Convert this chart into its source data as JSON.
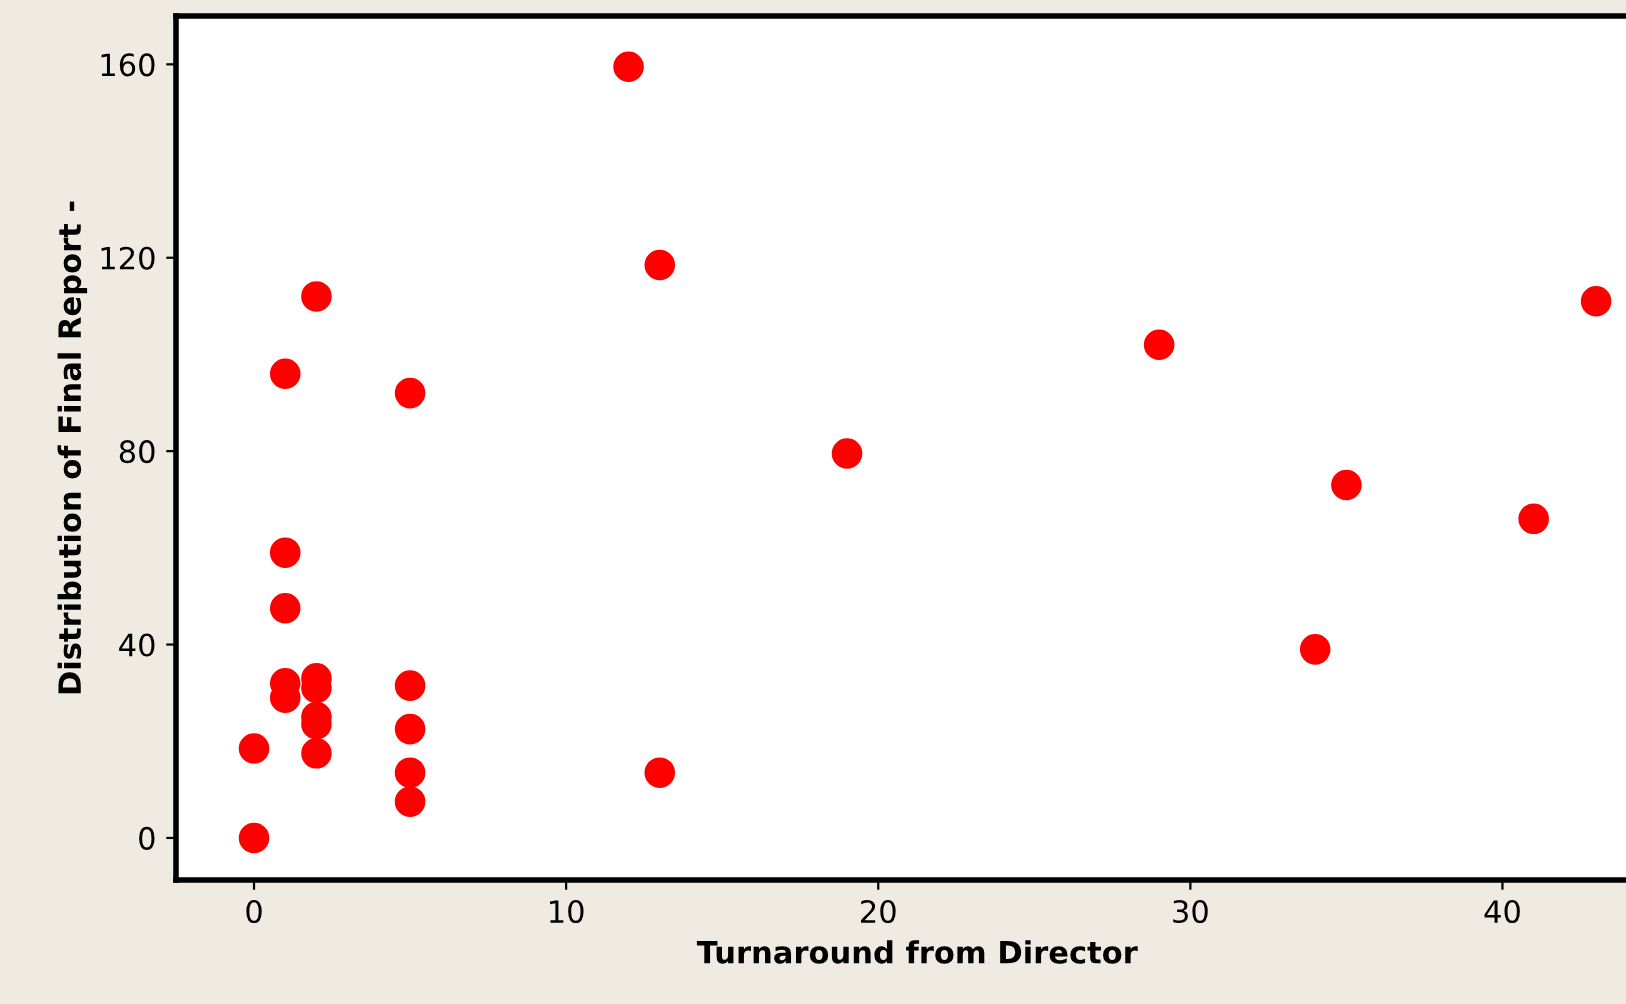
{
  "chart_data": {
    "type": "scatter",
    "xlabel": "Turnaround from Director",
    "ylabel": "Distribution of Final Report -",
    "x": [
      0,
      0,
      1,
      1,
      1,
      1,
      1,
      2,
      2,
      2,
      2,
      2,
      2,
      5,
      5,
      5,
      5,
      5,
      12,
      13,
      13,
      19,
      29,
      34,
      35,
      41,
      43
    ],
    "series": [
      {
        "color": "#ff0000",
        "values": [
          0,
          18.5,
          59,
          47.5,
          96,
          32,
          29,
          112,
          33,
          31,
          25,
          23.5,
          17.5,
          92,
          31.5,
          22.5,
          13.5,
          7.5,
          159.5,
          118.5,
          13.5,
          79.5,
          102,
          39,
          73,
          66,
          111
        ]
      }
    ],
    "xlim": [
      -2.5,
      45
    ],
    "ylim": [
      -8.7,
      170
    ],
    "xticks": [
      0,
      10,
      20,
      30,
      40
    ],
    "yticks": [
      0,
      40,
      80,
      120,
      160
    ],
    "grid": false,
    "marker": "circle",
    "legend": false
  }
}
